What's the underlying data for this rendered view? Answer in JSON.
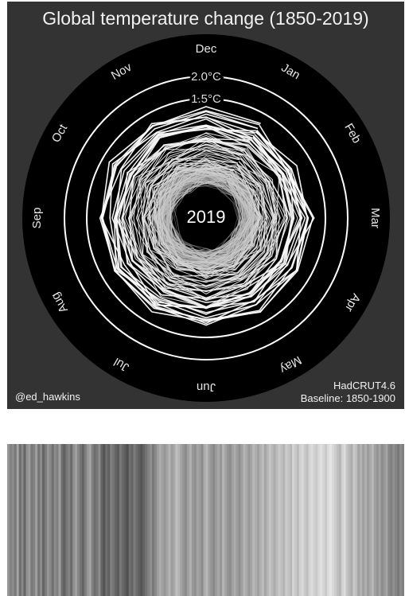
{
  "chart_data": [
    {
      "type": "radial-line",
      "title": "Global temperature change (1850-2019)",
      "months": [
        "Jan",
        "Feb",
        "Mar",
        "Apr",
        "May",
        "Jun",
        "Jul",
        "Aug",
        "Sep",
        "Oct",
        "Nov",
        "Dec"
      ],
      "rings": [
        {
          "label": "1.5",
          "unit": "°C",
          "value": 1.5
        },
        {
          "label": "2.0",
          "unit": "°C",
          "value": 2.0
        }
      ],
      "radial_range": [
        -1.0,
        2.0
      ],
      "years": [
        1850,
        2019
      ],
      "current_year_label": "2019",
      "colors": {
        "background": "#333333",
        "disc": "#000000",
        "rings": "#ffffff",
        "lines": "#dddddd"
      }
    },
    {
      "type": "heatmap",
      "style": "warming-stripes",
      "years": [
        1850,
        2019
      ],
      "stripe_count": 170,
      "values": [
        0.55,
        0.45,
        0.5,
        0.4,
        0.62,
        0.35,
        0.48,
        0.3,
        0.52,
        0.58,
        0.4,
        0.45,
        0.6,
        0.38,
        0.5,
        0.3,
        0.42,
        0.55,
        0.48,
        0.36,
        0.5,
        0.44,
        0.6,
        0.35,
        0.28,
        0.4,
        0.46,
        0.33,
        0.52,
        0.6,
        0.47,
        0.38,
        0.3,
        0.42,
        0.55,
        0.62,
        0.45,
        0.35,
        0.4,
        0.5,
        0.3,
        0.22,
        0.35,
        0.28,
        0.44,
        0.38,
        0.3,
        0.25,
        0.4,
        0.33,
        0.27,
        0.2,
        0.36,
        0.3,
        0.42,
        0.34,
        0.28,
        0.22,
        0.3,
        0.38,
        0.45,
        0.52,
        0.4,
        0.48,
        0.58,
        0.66,
        0.6,
        0.55,
        0.62,
        0.7,
        0.58,
        0.64,
        0.75,
        0.7,
        0.62,
        0.55,
        0.5,
        0.6,
        0.68,
        0.56,
        0.52,
        0.62,
        0.58,
        0.5,
        0.66,
        0.72,
        0.6,
        0.54,
        0.48,
        0.58,
        0.64,
        0.56,
        0.7,
        0.62,
        0.55,
        0.5,
        0.6,
        0.66,
        0.58,
        0.52,
        0.6,
        0.7,
        0.64,
        0.56,
        0.62,
        0.72,
        0.66,
        0.6,
        0.68,
        0.74,
        0.62,
        0.7,
        0.78,
        0.72,
        0.66,
        0.74,
        0.8,
        0.76,
        0.7,
        0.82,
        0.78,
        0.72,
        0.86,
        0.8,
        0.74,
        0.84,
        0.88,
        0.8,
        0.76,
        0.86,
        0.9,
        0.84,
        0.8,
        0.88,
        0.92,
        0.86,
        0.8,
        0.9,
        0.94,
        0.88,
        0.82,
        0.76,
        0.7,
        0.84,
        0.9,
        0.78,
        0.72,
        0.66,
        0.8,
        0.74,
        0.62,
        0.7,
        0.6,
        0.68,
        0.58,
        0.64,
        0.72,
        0.6,
        0.54,
        0.62,
        0.5,
        0.56,
        0.62,
        0.48,
        0.44,
        0.52,
        0.46,
        0.4,
        0.5,
        0.44
      ]
    }
  ],
  "credit": "@ed_hawkins",
  "source": "HadCRUT4.6",
  "baseline": "Baseline: 1850-1900"
}
